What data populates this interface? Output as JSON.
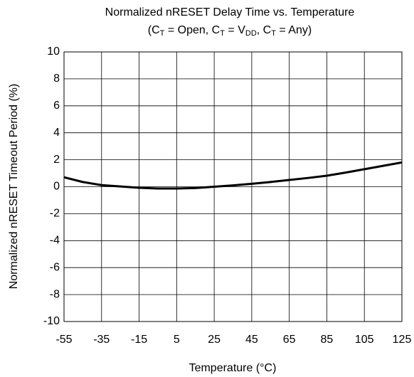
{
  "chart_data": {
    "type": "line",
    "title": "Normalized nRESET Delay Time vs. Temperature",
    "subtitle": [
      "(C",
      "T",
      " = Open, C",
      "T",
      " = V",
      "DD",
      ", C",
      "T",
      " = Any)"
    ],
    "x_label": "Temperature (°C)",
    "y_label": "Normalized nRESET Timeout Period (%)",
    "x": [
      -55,
      -45,
      -35,
      -25,
      -15,
      -5,
      5,
      15,
      25,
      35,
      45,
      55,
      65,
      75,
      85,
      95,
      105,
      115,
      125
    ],
    "series": [
      {
        "color": "#000000",
        "values": [
          0.7,
          0.35,
          0.12,
          0.02,
          -0.08,
          -0.13,
          -0.13,
          -0.1,
          0,
          0.1,
          0.22,
          0.35,
          0.5,
          0.65,
          0.82,
          1.05,
          1.3,
          1.55,
          1.8
        ]
      }
    ],
    "xlim": [
      -55,
      125
    ],
    "xticks": [
      -55,
      -35,
      -15,
      5,
      25,
      45,
      65,
      85,
      105,
      125
    ],
    "ylim": [
      -10,
      10
    ],
    "yticks": [
      -10,
      -8,
      -6,
      -4,
      -2,
      0,
      2,
      4,
      6,
      8,
      10
    ],
    "grid": true
  }
}
